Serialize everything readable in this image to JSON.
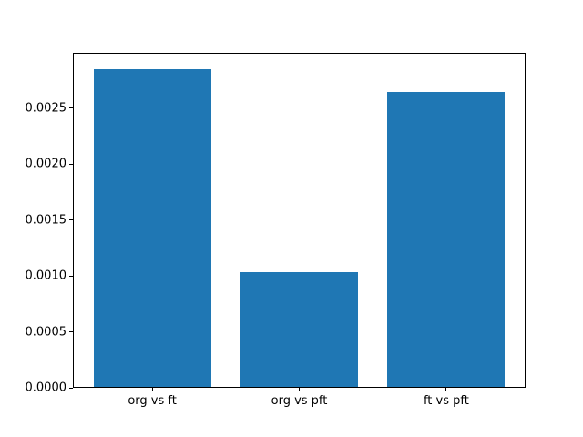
{
  "chart_data": {
    "type": "bar",
    "title": "",
    "xlabel": "",
    "ylabel": "",
    "categories": [
      "org vs ft",
      "org vs pft",
      "ft vs pft"
    ],
    "values": [
      0.00285,
      0.00103,
      0.00264
    ],
    "ylim": [
      0,
      0.0029925
    ],
    "xlim": [
      -0.54,
      2.54
    ],
    "bar_width": 0.8,
    "yticks": [
      {
        "value": 0.0,
        "label": "0.0000"
      },
      {
        "value": 0.0005,
        "label": "0.0005"
      },
      {
        "value": 0.001,
        "label": "0.0010"
      },
      {
        "value": 0.0015,
        "label": "0.0015"
      },
      {
        "value": 0.002,
        "label": "0.0020"
      },
      {
        "value": 0.0025,
        "label": "0.0025"
      }
    ],
    "grid": false,
    "legend": null,
    "bar_color": "#1f77b4",
    "background_color": "#ffffff",
    "spine_color": "#000000",
    "text_color": "#000000"
  }
}
